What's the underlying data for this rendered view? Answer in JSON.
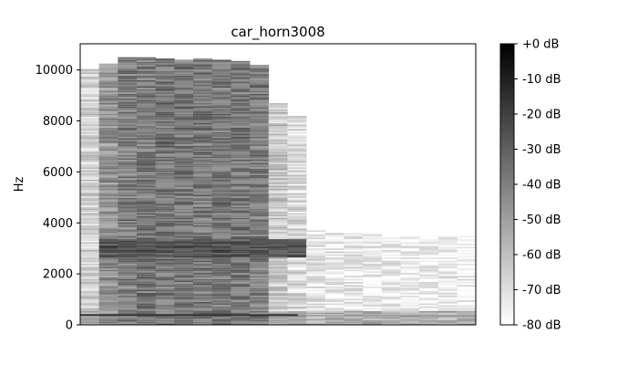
{
  "chart_data": {
    "type": "heatmap",
    "title": "car_horn3008",
    "xlabel": "",
    "ylabel": "Hz",
    "ylim": [
      0,
      11025
    ],
    "y_ticks": [
      0,
      2000,
      4000,
      6000,
      8000,
      10000
    ],
    "colormap": "gray_r",
    "colorbar": {
      "range_db": [
        -80,
        0
      ],
      "ticks_db": [
        0,
        -10,
        -20,
        -30,
        -40,
        -50,
        -60,
        -70,
        -80
      ],
      "tick_labels": [
        "+0 dB",
        "-10 dB",
        "-20 dB",
        "-30 dB",
        "-40 dB",
        "-50 dB",
        "-60 dB",
        "-70 dB",
        "-80 dB"
      ]
    },
    "time_frames": 21,
    "frame_band_top_hz": [
      10050,
      10250,
      10500,
      10500,
      10450,
      10400,
      10450,
      10400,
      10350,
      10200,
      8700,
      8200,
      3700,
      3600,
      3600,
      3600,
      3500,
      3500,
      3500,
      3500,
      3500
    ],
    "frame_band_db": [
      -65,
      -45,
      -38,
      -36,
      -36,
      -36,
      -36,
      -36,
      -36,
      -38,
      -62,
      -68,
      -72,
      -74,
      -74,
      -74,
      -75,
      -76,
      -76,
      -76,
      -76
    ],
    "low_band_hz": [
      0,
      500
    ],
    "low_band_db": -55,
    "formant_band_hz": [
      2600,
      3300
    ],
    "formant_band_db": -25
  }
}
